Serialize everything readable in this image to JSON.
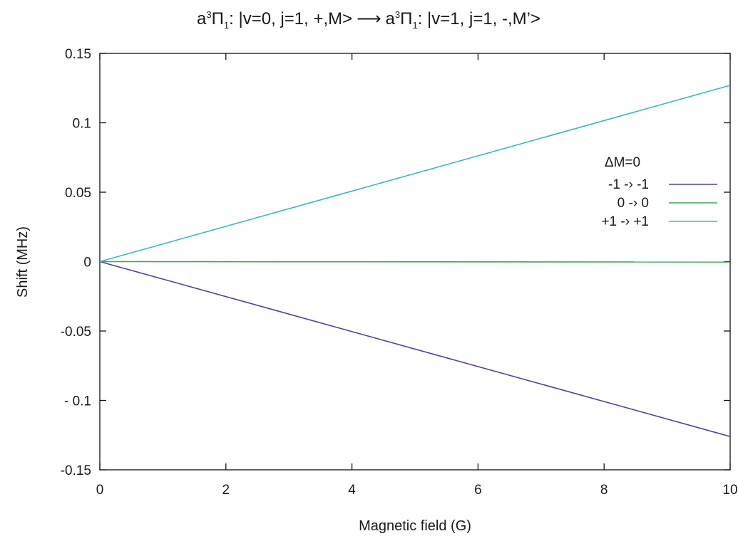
{
  "chart_data": {
    "type": "line",
    "title": {
      "left_prefix": "a",
      "left_sup": "3",
      "left_symbol": "Π",
      "left_sub": "1",
      "left_rest": ": |v=0, j=1, +,M>",
      "arrow": "⟶",
      "right_prefix": "a",
      "right_sup": "3",
      "right_symbol": "Π",
      "right_sub": "1",
      "right_rest": ": |v=1, j=1, -,M’>"
    },
    "xlabel": "Magnetic field (G)",
    "ylabel": "Shift (MHz)",
    "xlim": [
      0,
      10
    ],
    "ylim": [
      -0.15,
      0.15
    ],
    "x_ticks": [
      0,
      2,
      4,
      6,
      8,
      10
    ],
    "x_tick_labels": [
      "0",
      "2",
      "4",
      "6",
      "8",
      "10"
    ],
    "y_ticks": [
      -0.15,
      -0.1,
      -0.05,
      0,
      0.05,
      0.1,
      0.15
    ],
    "y_tick_labels": [
      "-0.15",
      "- 0.1",
      "-0.05",
      "0",
      "0.05",
      "0.1",
      "0.15"
    ],
    "grid": false,
    "legend": {
      "title": "ΔM=0",
      "placement": "right"
    },
    "series": [
      {
        "name": "-1 -› -1",
        "color": "#5c3f9c",
        "x": [
          0,
          10
        ],
        "y": [
          0,
          -0.126
        ]
      },
      {
        "name": "0 -› 0",
        "color": "#3aa856",
        "x": [
          0,
          10
        ],
        "y": [
          0,
          -0.0003
        ]
      },
      {
        "name": "+1 -› +1",
        "color": "#3ab9bf",
        "x": [
          0,
          10
        ],
        "y": [
          0,
          0.127
        ]
      }
    ]
  }
}
